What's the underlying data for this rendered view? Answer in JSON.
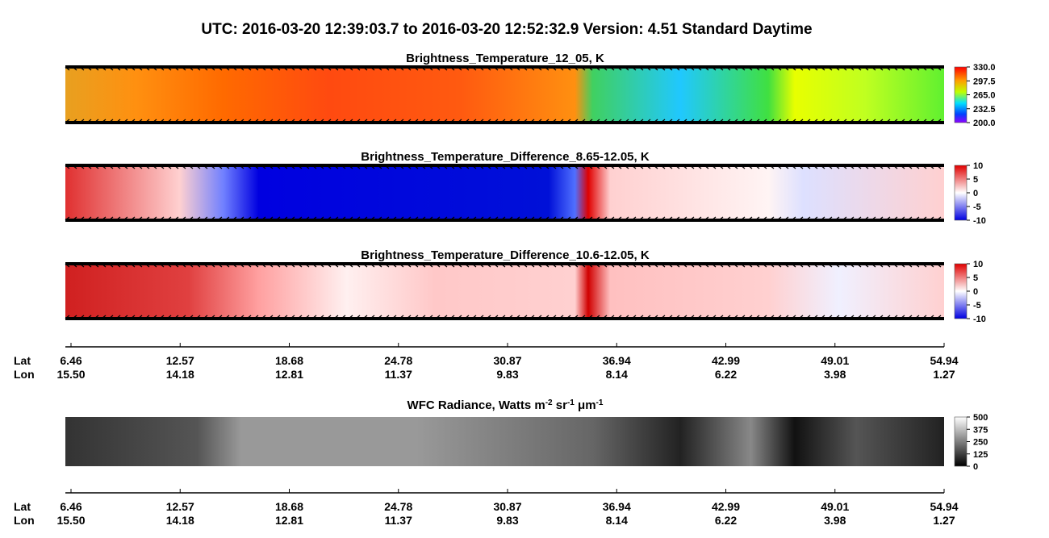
{
  "title": "UTC:  2016-03-20   12:39:03.7  to  2016-03-20   12:52:32.9    Version: 4.51  Standard Daytime",
  "panels": [
    {
      "title": "Brightness_Temperature_12_05, K",
      "colorbar_ticks": [
        "330.0",
        "297.5",
        "265.0",
        "232.5",
        "200.0"
      ]
    },
    {
      "title": "Brightness_Temperature_Difference_8.65-12.05, K",
      "colorbar_ticks": [
        "10",
        "5",
        "0",
        "-5",
        "-10"
      ]
    },
    {
      "title": "Brightness_Temperature_Difference_10.6-12.05, K",
      "colorbar_ticks": [
        "10",
        "5",
        "0",
        "-5",
        "-10"
      ]
    },
    {
      "title_parts": [
        "WFC Radiance, Watts m",
        "-2",
        " sr",
        "-1",
        " μm",
        "-1"
      ],
      "colorbar_ticks": [
        "500",
        "375",
        "250",
        "125",
        "0"
      ]
    }
  ],
  "axes": [
    {
      "lat_label": "Lat",
      "lon_label": "Lon",
      "lat": [
        "6.46",
        "12.57",
        "18.68",
        "24.78",
        "30.87",
        "36.94",
        "42.99",
        "49.01",
        "54.94"
      ],
      "lon": [
        "15.50",
        "14.18",
        "12.81",
        "11.37",
        "9.83",
        "8.14",
        "6.22",
        "3.98",
        "1.27"
      ]
    },
    {
      "lat_label": "Lat",
      "lon_label": "Lon",
      "lat": [
        "6.46",
        "12.57",
        "18.68",
        "24.78",
        "30.87",
        "36.94",
        "42.99",
        "49.01",
        "54.94"
      ],
      "lon": [
        "15.50",
        "14.18",
        "12.81",
        "11.37",
        "9.83",
        "8.14",
        "6.22",
        "3.98",
        "1.27"
      ]
    }
  ]
}
